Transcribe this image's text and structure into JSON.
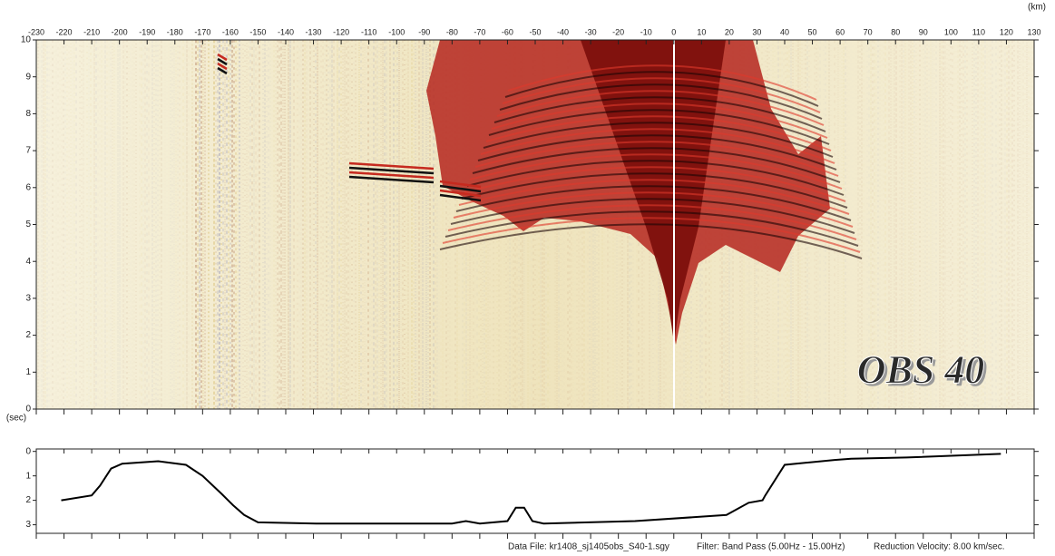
{
  "chart_data": [
    {
      "type": "section",
      "title": "OBS 40",
      "x_unit": "(km)",
      "y_unit": "(sec)",
      "xlim": [
        -230,
        130
      ],
      "ylim": [
        0,
        10
      ],
      "xticks": [
        -230,
        -220,
        -210,
        -200,
        -190,
        -180,
        -170,
        -160,
        -150,
        -140,
        -130,
        -120,
        -110,
        -100,
        -90,
        -80,
        -70,
        -60,
        -50,
        -40,
        -30,
        -20,
        -10,
        0,
        10,
        20,
        30,
        40,
        50,
        60,
        70,
        80,
        90,
        100,
        110,
        120,
        130
      ],
      "yticks": [
        0,
        1,
        2,
        3,
        4,
        5,
        6,
        7,
        8,
        9,
        10
      ]
    },
    {
      "type": "line",
      "x": [
        -221,
        -210,
        -207,
        -203,
        -199,
        -186,
        -176,
        -170,
        -163,
        -159,
        -155,
        -150,
        -129,
        -80,
        -75,
        -70,
        -60,
        -57,
        -54,
        -51,
        -47,
        -14,
        19,
        27,
        32,
        33,
        40,
        58,
        64,
        84,
        118
      ],
      "series": [
        {
          "color": "#000000",
          "values": [
            2.0,
            1.8,
            1.4,
            0.7,
            0.5,
            0.4,
            0.55,
            1.0,
            1.75,
            2.2,
            2.6,
            2.9,
            2.95,
            2.95,
            2.85,
            2.95,
            2.85,
            2.3,
            2.3,
            2.85,
            2.95,
            2.85,
            2.6,
            2.1,
            2.0,
            1.8,
            0.55,
            0.35,
            0.3,
            0.25,
            0.1
          ]
        }
      ],
      "ylim": [
        -0.1,
        3.35
      ],
      "inverted": true,
      "yticks": [
        0,
        1,
        2,
        3
      ]
    }
  ],
  "caption": [
    "Data File: kr1408_sj1405obs_S40-1.sgy",
    "Filter: Band Pass (5.00Hz - 15.00Hz)",
    "Reduction Velocity: 8.00 km/sec."
  ]
}
